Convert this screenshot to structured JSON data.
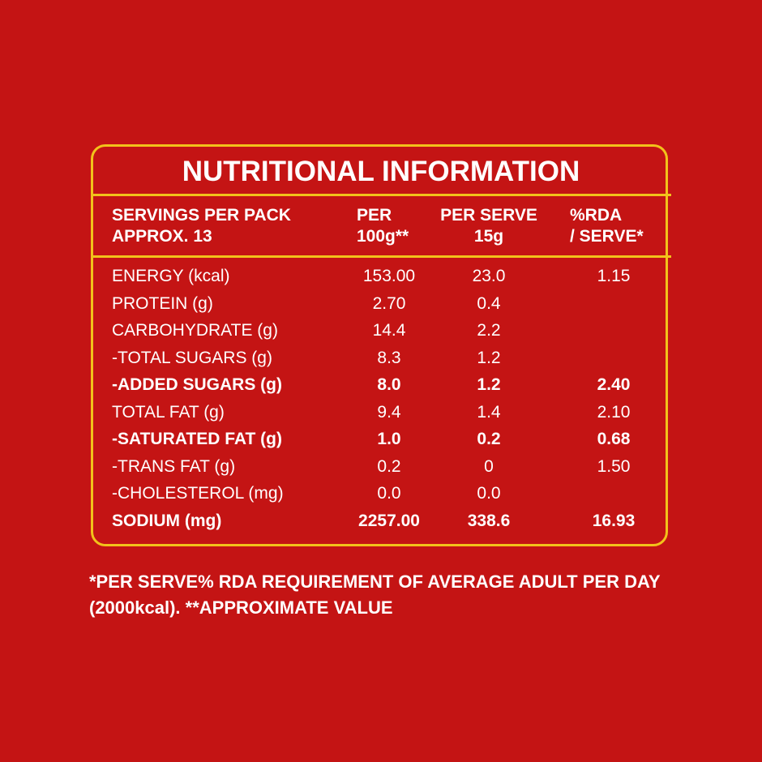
{
  "title": "NUTRITIONAL INFORMATION",
  "header": {
    "label": [
      "SERVINGS PER PACK",
      "APPROX. 13"
    ],
    "columns": [
      [
        "PER",
        "100g**"
      ],
      [
        "PER SERVE",
        "15g"
      ],
      [
        "%RDA",
        "/ SERVE*"
      ]
    ]
  },
  "rows": [
    {
      "label": "ENERGY (kcal)",
      "values": [
        "153.00",
        "23.0",
        "1.15"
      ],
      "bold": false
    },
    {
      "label": "PROTEIN (g)",
      "values": [
        "2.70",
        "0.4",
        null
      ],
      "bold": false
    },
    {
      "label": "CARBOHYDRATE (g)",
      "values": [
        "14.4",
        "2.2",
        null
      ],
      "bold": false
    },
    {
      "label": "-TOTAL SUGARS (g)",
      "values": [
        "8.3",
        "1.2",
        null
      ],
      "bold": false
    },
    {
      "label": "-ADDED SUGARS (g)",
      "values": [
        "8.0",
        "1.2",
        "2.40"
      ],
      "bold": true
    },
    {
      "label": "TOTAL FAT (g)",
      "values": [
        "9.4",
        "1.4",
        "2.10"
      ],
      "bold": false
    },
    {
      "label": "-SATURATED FAT (g)",
      "values": [
        "1.0",
        "0.2",
        "0.68"
      ],
      "bold": true
    },
    {
      "label": "-TRANS FAT (g)",
      "values": [
        "0.2",
        "0",
        "1.50"
      ],
      "bold": false
    },
    {
      "label": "-CHOLESTEROL (mg)",
      "values": [
        "0.0",
        "0.0",
        null
      ],
      "bold": false
    },
    {
      "label": "SODIUM (mg)",
      "values": [
        "2257.00",
        "338.6",
        "16.93"
      ],
      "bold": true
    }
  ],
  "footnote": [
    "*PER SERVE% RDA REQUIREMENT OF AVERAGE ADULT PER DAY",
    "(2000kcal). **APPROXIMATE VALUE"
  ]
}
